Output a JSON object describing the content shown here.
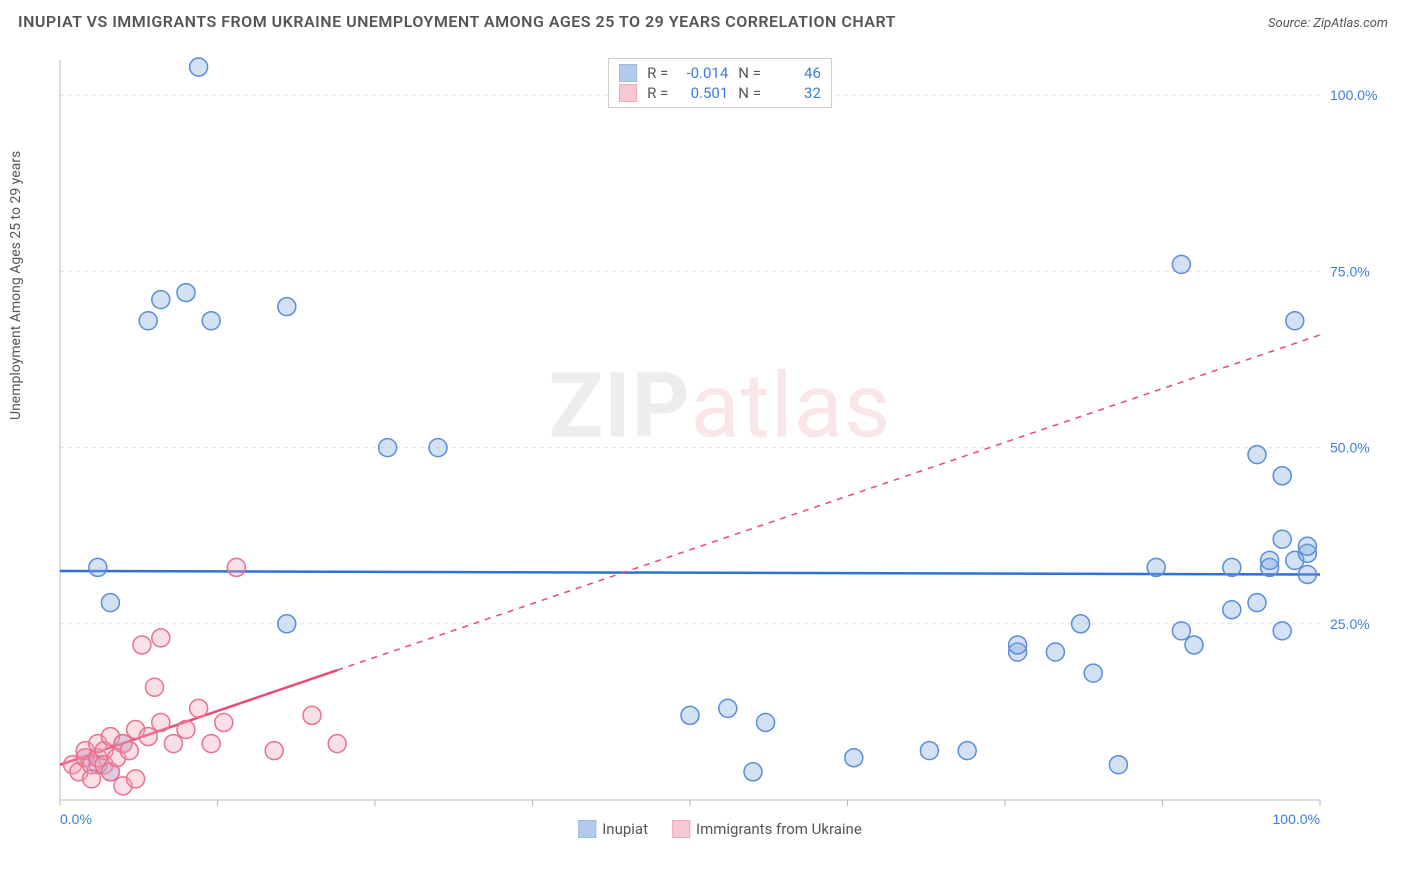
{
  "title": "INUPIAT VS IMMIGRANTS FROM UKRAINE UNEMPLOYMENT AMONG AGES 25 TO 29 YEARS CORRELATION CHART",
  "source": "Source: ZipAtlas.com",
  "y_axis_label": "Unemployment Among Ages 25 to 29 years",
  "watermark": {
    "zip": "ZIP",
    "atlas": "atlas"
  },
  "chart": {
    "type": "scatter",
    "background_color": "#ffffff",
    "grid_color": "#e4e4e4",
    "axis_color": "#bbbbbb",
    "xlim": [
      0,
      100
    ],
    "ylim": [
      0,
      105
    ],
    "x_ticks": [
      0,
      12.5,
      25,
      37.5,
      50,
      62.5,
      75,
      87.5,
      100
    ],
    "x_tick_labels_shown": {
      "0": "0.0%",
      "100": "100.0%"
    },
    "y_ticks": [
      25,
      50,
      75,
      100
    ],
    "y_tick_labels": [
      "25.0%",
      "50.0%",
      "75.0%",
      "100.0%"
    ],
    "marker_radius": 9,
    "marker_fill_opacity": 0.35,
    "marker_stroke_width": 1.5,
    "series": [
      {
        "name": "Inupiat",
        "color": "#7fa8e0",
        "stroke": "#5b8dd6",
        "r_value": "-0.014",
        "n_value": "46",
        "trend": {
          "y_start": 32.5,
          "y_end": 32.0,
          "x_solid_end": 100,
          "line_color": "#2e6fd6",
          "line_width": 2.5
        },
        "points": [
          [
            3,
            33
          ],
          [
            4,
            28
          ],
          [
            11,
            104
          ],
          [
            8,
            71
          ],
          [
            10,
            72
          ],
          [
            7,
            68
          ],
          [
            12,
            68
          ],
          [
            18,
            70
          ],
          [
            18,
            25
          ],
          [
            26,
            50
          ],
          [
            30,
            50
          ],
          [
            5,
            8
          ],
          [
            2,
            6
          ],
          [
            3,
            5
          ],
          [
            4,
            4
          ],
          [
            50,
            12
          ],
          [
            53,
            13
          ],
          [
            55,
            4
          ],
          [
            56,
            11
          ],
          [
            63,
            6
          ],
          [
            69,
            7
          ],
          [
            72,
            7
          ],
          [
            76,
            21
          ],
          [
            76,
            22
          ],
          [
            79,
            21
          ],
          [
            81,
            25
          ],
          [
            82,
            18
          ],
          [
            84,
            5
          ],
          [
            87,
            33
          ],
          [
            89,
            24
          ],
          [
            90,
            22
          ],
          [
            89,
            76
          ],
          [
            93,
            27
          ],
          [
            93,
            33
          ],
          [
            95,
            28
          ],
          [
            95,
            49
          ],
          [
            96,
            33
          ],
          [
            96,
            34
          ],
          [
            97,
            37
          ],
          [
            97,
            24
          ],
          [
            97,
            46
          ],
          [
            98,
            68
          ],
          [
            98,
            34
          ],
          [
            99,
            35
          ],
          [
            99,
            36
          ],
          [
            99,
            32
          ]
        ]
      },
      {
        "name": "Immigrants from Ukraine",
        "color": "#f4a3b8",
        "stroke": "#e9708f",
        "r_value": "0.501",
        "n_value": "32",
        "trend": {
          "y_start": 5,
          "y_end": 66,
          "x_solid_end": 22,
          "line_color": "#e84a73",
          "line_width": 2.5
        },
        "points": [
          [
            1,
            5
          ],
          [
            1.5,
            4
          ],
          [
            2,
            6
          ],
          [
            2,
            7
          ],
          [
            2.5,
            5
          ],
          [
            2.5,
            3
          ],
          [
            3,
            6
          ],
          [
            3,
            8
          ],
          [
            3.5,
            7
          ],
          [
            3.5,
            5
          ],
          [
            4,
            4
          ],
          [
            4,
            9
          ],
          [
            4.5,
            6
          ],
          [
            5,
            2
          ],
          [
            5,
            8
          ],
          [
            5.5,
            7
          ],
          [
            6,
            3
          ],
          [
            6,
            10
          ],
          [
            6.5,
            22
          ],
          [
            7,
            9
          ],
          [
            7.5,
            16
          ],
          [
            8,
            23
          ],
          [
            8,
            11
          ],
          [
            9,
            8
          ],
          [
            10,
            10
          ],
          [
            11,
            13
          ],
          [
            12,
            8
          ],
          [
            13,
            11
          ],
          [
            14,
            33
          ],
          [
            17,
            7
          ],
          [
            20,
            12
          ],
          [
            22,
            8
          ]
        ]
      }
    ]
  },
  "stats_legend": {
    "r_label": "R =",
    "n_label": "N ="
  },
  "bottom_legend": {
    "items": [
      "Inupiat",
      "Immigrants from Ukraine"
    ]
  }
}
